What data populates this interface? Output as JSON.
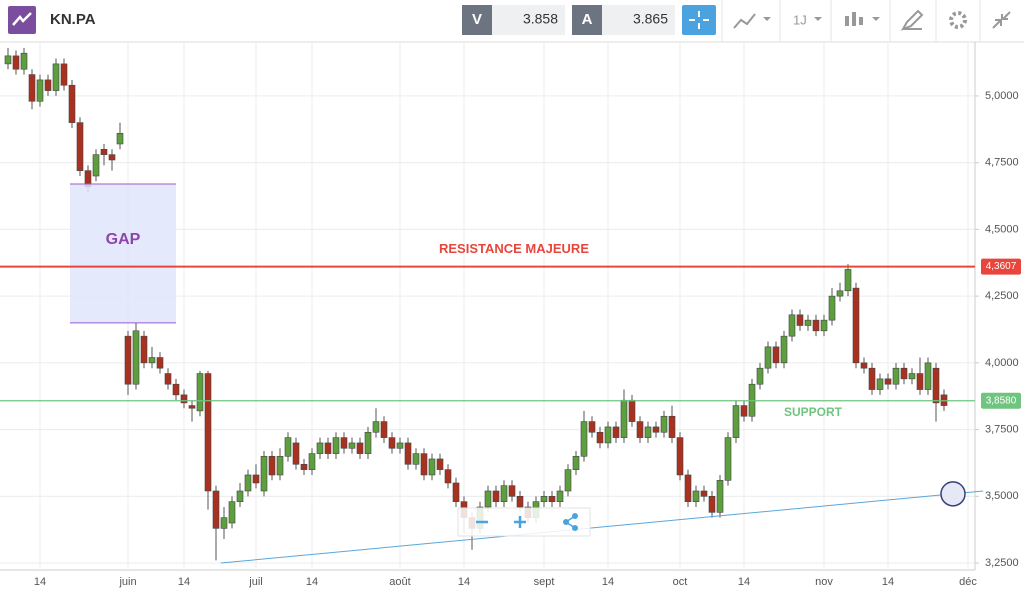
{
  "toolbar": {
    "symbol": "KN.PA",
    "bid_label": "V",
    "bid": "3.858",
    "ask_label": "A",
    "ask": "3.865",
    "period": "1J"
  },
  "chart_data": {
    "type": "candlestick",
    "categories": [
      null,
      null,
      null,
      null,
      "14",
      null,
      null,
      null,
      null,
      null,
      null,
      null,
      null,
      null,
      null,
      "juin",
      null,
      null,
      null,
      null,
      null,
      null,
      "14",
      null,
      null,
      null,
      null,
      null,
      null,
      null,
      null,
      "juil",
      null,
      null,
      null,
      null,
      null,
      null,
      "14",
      null,
      null,
      null,
      null,
      null,
      null,
      null,
      null,
      null,
      null,
      "août",
      null,
      null,
      null,
      null,
      null,
      null,
      null,
      "14",
      null,
      null,
      null,
      null,
      null,
      null,
      null,
      null,
      null,
      "sept",
      null,
      null,
      null,
      null,
      null,
      null,
      null,
      "14",
      null,
      null,
      null,
      null,
      null,
      null,
      null,
      null,
      "oct",
      null,
      null,
      null,
      null,
      null,
      null,
      null,
      "14",
      null,
      null,
      null,
      null,
      null,
      null,
      null,
      null,
      null,
      "nov",
      null,
      null,
      null,
      null,
      null,
      null,
      null,
      "14",
      null,
      null,
      null,
      null,
      null,
      null,
      null,
      null,
      null,
      "déc"
    ],
    "open": [
      5.12,
      5.15,
      5.1,
      5.08,
      4.98,
      5.06,
      5.02,
      5.12,
      5.04,
      4.9,
      4.72,
      4.7,
      4.8,
      4.78,
      4.82,
      4.1,
      3.92,
      4.1,
      4.0,
      4.02,
      3.96,
      3.92,
      3.88,
      3.84,
      3.82,
      3.96,
      3.52,
      3.38,
      3.4,
      3.48,
      3.52,
      3.58,
      3.52,
      3.65,
      3.58,
      3.65,
      3.7,
      3.62,
      3.6,
      3.66,
      3.7,
      3.66,
      3.72,
      3.68,
      3.7,
      3.66,
      3.74,
      3.78,
      3.72,
      3.68,
      3.7,
      3.62,
      3.66,
      3.58,
      3.64,
      3.6,
      3.55,
      3.48,
      3.42,
      3.38,
      3.46,
      3.52,
      3.48,
      3.54,
      3.5,
      3.46,
      3.42,
      3.48,
      3.5,
      3.48,
      3.52,
      3.6,
      3.65,
      3.78,
      3.74,
      3.7,
      3.76,
      3.72,
      3.86,
      3.78,
      3.72,
      3.76,
      3.74,
      3.8,
      3.72,
      3.58,
      3.48,
      3.52,
      3.5,
      3.44,
      3.56,
      3.72,
      3.84,
      3.8,
      3.92,
      3.98,
      4.06,
      4.0,
      4.1,
      4.18,
      4.14,
      4.16,
      4.12,
      4.16,
      4.25,
      4.27,
      4.28,
      4.0,
      3.98,
      3.9,
      3.94,
      3.92,
      3.98,
      3.94,
      3.96,
      3.9,
      3.98,
      3.88,
      null,
      null,
      null
    ],
    "high": [
      5.18,
      5.17,
      5.18,
      5.1,
      5.08,
      5.08,
      5.14,
      5.14,
      5.06,
      4.92,
      4.74,
      4.8,
      4.82,
      4.8,
      4.9,
      4.12,
      4.15,
      4.12,
      4.06,
      4.04,
      3.98,
      3.94,
      3.9,
      3.86,
      3.97,
      3.97,
      3.54,
      3.46,
      3.5,
      3.55,
      3.6,
      3.62,
      3.67,
      3.67,
      3.68,
      3.74,
      3.72,
      3.64,
      3.68,
      3.72,
      3.72,
      3.74,
      3.74,
      3.72,
      3.72,
      3.76,
      3.83,
      3.8,
      3.74,
      3.72,
      3.72,
      3.68,
      3.68,
      3.66,
      3.66,
      3.62,
      3.57,
      3.5,
      3.44,
      3.48,
      3.54,
      3.54,
      3.56,
      3.56,
      3.52,
      3.48,
      3.5,
      3.52,
      3.52,
      3.54,
      3.62,
      3.67,
      3.82,
      3.8,
      3.76,
      3.78,
      3.78,
      3.9,
      3.88,
      3.8,
      3.78,
      3.78,
      3.82,
      3.84,
      3.74,
      3.6,
      3.54,
      3.54,
      3.52,
      3.58,
      3.74,
      3.86,
      3.86,
      3.94,
      4.0,
      4.08,
      4.08,
      4.12,
      4.2,
      4.2,
      4.18,
      4.18,
      4.18,
      4.28,
      4.3,
      4.37,
      4.3,
      4.02,
      4.0,
      3.96,
      3.96,
      4.0,
      4.0,
      3.98,
      4.02,
      4.02,
      4.0,
      3.9,
      null,
      null,
      null
    ],
    "low": [
      5.1,
      5.08,
      5.08,
      4.95,
      4.96,
      5.0,
      5.0,
      5.02,
      4.88,
      4.7,
      4.64,
      4.68,
      4.74,
      4.72,
      4.8,
      3.88,
      3.9,
      3.98,
      3.98,
      3.96,
      3.9,
      3.86,
      3.83,
      3.78,
      3.8,
      3.45,
      3.26,
      3.34,
      3.38,
      3.46,
      3.5,
      3.53,
      3.5,
      3.56,
      3.56,
      3.63,
      3.6,
      3.58,
      3.58,
      3.64,
      3.64,
      3.64,
      3.66,
      3.66,
      3.64,
      3.64,
      3.72,
      3.7,
      3.66,
      3.66,
      3.6,
      3.6,
      3.56,
      3.56,
      3.58,
      3.53,
      3.46,
      3.36,
      3.3,
      3.36,
      3.44,
      3.46,
      3.46,
      3.48,
      3.44,
      3.4,
      3.4,
      3.46,
      3.46,
      3.46,
      3.5,
      3.58,
      3.63,
      3.72,
      3.68,
      3.68,
      3.7,
      3.7,
      3.76,
      3.7,
      3.7,
      3.72,
      3.72,
      3.7,
      3.56,
      3.46,
      3.46,
      3.48,
      3.42,
      3.42,
      3.54,
      3.7,
      3.78,
      3.78,
      3.9,
      3.96,
      3.98,
      3.98,
      4.08,
      4.12,
      4.12,
      4.1,
      4.1,
      4.14,
      4.23,
      4.25,
      3.98,
      3.96,
      3.88,
      3.88,
      3.9,
      3.9,
      3.92,
      3.92,
      3.88,
      3.88,
      3.78,
      3.82,
      null,
      null,
      null
    ],
    "close": [
      5.15,
      5.1,
      5.16,
      4.98,
      5.06,
      5.02,
      5.12,
      5.04,
      4.9,
      4.72,
      4.66,
      4.78,
      4.78,
      4.76,
      4.86,
      3.92,
      4.12,
      4.0,
      4.02,
      3.98,
      3.92,
      3.88,
      3.85,
      3.83,
      3.96,
      3.52,
      3.38,
      3.42,
      3.48,
      3.52,
      3.58,
      3.55,
      3.65,
      3.58,
      3.65,
      3.72,
      3.62,
      3.6,
      3.66,
      3.7,
      3.66,
      3.72,
      3.68,
      3.7,
      3.66,
      3.74,
      3.78,
      3.72,
      3.68,
      3.7,
      3.62,
      3.66,
      3.58,
      3.64,
      3.6,
      3.55,
      3.48,
      3.42,
      3.38,
      3.46,
      3.52,
      3.48,
      3.54,
      3.5,
      3.46,
      3.42,
      3.48,
      3.5,
      3.48,
      3.52,
      3.6,
      3.65,
      3.78,
      3.74,
      3.7,
      3.76,
      3.72,
      3.86,
      3.78,
      3.72,
      3.76,
      3.74,
      3.8,
      3.72,
      3.58,
      3.48,
      3.52,
      3.5,
      3.44,
      3.56,
      3.72,
      3.84,
      3.8,
      3.92,
      3.98,
      4.06,
      4.0,
      4.1,
      4.18,
      4.14,
      4.16,
      4.12,
      4.16,
      4.25,
      4.27,
      4.35,
      4.0,
      3.98,
      3.9,
      3.94,
      3.92,
      3.98,
      3.94,
      3.96,
      3.9,
      4.0,
      3.85,
      3.84,
      null,
      null,
      null
    ],
    "up_color": "#5d9e3e",
    "down_color": "#a9311f",
    "ylim": [
      3.224,
      5.202
    ],
    "yticks": [
      {
        "value": 3.25,
        "label": "3,2500"
      },
      {
        "value": 3.5,
        "label": "3,5000"
      },
      {
        "value": 3.75,
        "label": "3,7500"
      },
      {
        "value": 4.0,
        "label": "4,0000"
      },
      {
        "value": 4.25,
        "label": "4,2500"
      },
      {
        "value": 4.5,
        "label": "4,5000"
      },
      {
        "value": 4.75,
        "label": "4,7500"
      },
      {
        "value": 5.0,
        "label": "5,0000"
      }
    ],
    "grid": true,
    "resistance": {
      "text": "RESISTANCE MAJEURE",
      "value": 4.3607,
      "label": "4,3607",
      "color": "#e8453c"
    },
    "support": {
      "text": "SUPPORT",
      "value": 3.858,
      "label": "3,8580",
      "color": "#6fc47f"
    },
    "gap": {
      "text": "GAP",
      "top": 4.67,
      "bottom": 4.15,
      "x": [
        7.75,
        21
      ]
    },
    "trendline": {
      "x": [
        26.6,
        121.9
      ],
      "y": [
        3.25,
        3.52
      ],
      "color": "#5aa6dc"
    }
  }
}
